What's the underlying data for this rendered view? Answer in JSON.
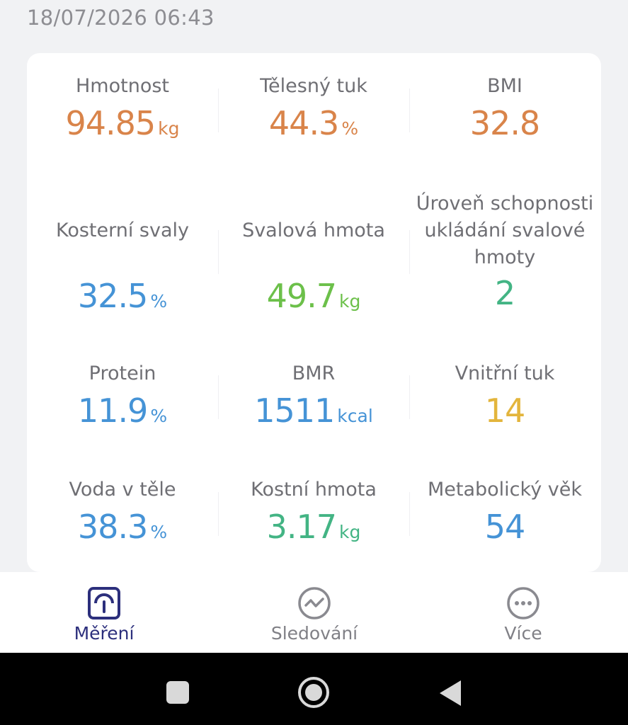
{
  "timestamp": "18/07/2026 06:43",
  "metrics": [
    {
      "label": "Hmotnost",
      "value": "94.85",
      "unit": "kg",
      "color": "#d9844a"
    },
    {
      "label": "Tělesný tuk",
      "value": "44.3",
      "unit": "%",
      "color": "#d9844a"
    },
    {
      "label": "BMI",
      "value": "32.8",
      "unit": "",
      "color": "#d9844a"
    },
    {
      "label": "Kosterní svaly",
      "value": "32.5",
      "unit": "%",
      "color": "#4593d6"
    },
    {
      "label": "Svalová hmota",
      "value": "49.7",
      "unit": "kg",
      "color": "#6cc04a"
    },
    {
      "label_lines": [
        "Úroveň schopnosti",
        "ukládání svalové",
        "hmoty"
      ],
      "value": "2",
      "unit": "",
      "color": "#43b484"
    },
    {
      "label": "Protein",
      "value": "11.9",
      "unit": "%",
      "color": "#4593d6"
    },
    {
      "label": "BMR",
      "value": "1511",
      "unit": "kcal",
      "color": "#4593d6"
    },
    {
      "label": "Vnitřní tuk",
      "value": "14",
      "unit": "",
      "color": "#e3b53c"
    },
    {
      "label": "Voda v těle",
      "value": "38.3",
      "unit": "%",
      "color": "#4593d6"
    },
    {
      "label": "Kostní hmota",
      "value": "3.17",
      "unit": "kg",
      "color": "#43b484"
    },
    {
      "label": "Metabolický věk",
      "value": "54",
      "unit": "",
      "color": "#4593d6"
    }
  ],
  "tabs": [
    {
      "label": "Měření",
      "icon": "scale-gauge-icon",
      "active": true
    },
    {
      "label": "Sledování",
      "icon": "trend-wave-icon",
      "active": false
    },
    {
      "label": "Více",
      "icon": "more-dots-icon",
      "active": false
    }
  ],
  "system_nav": [
    "recents-square-icon",
    "home-circle-icon",
    "back-triangle-icon"
  ]
}
